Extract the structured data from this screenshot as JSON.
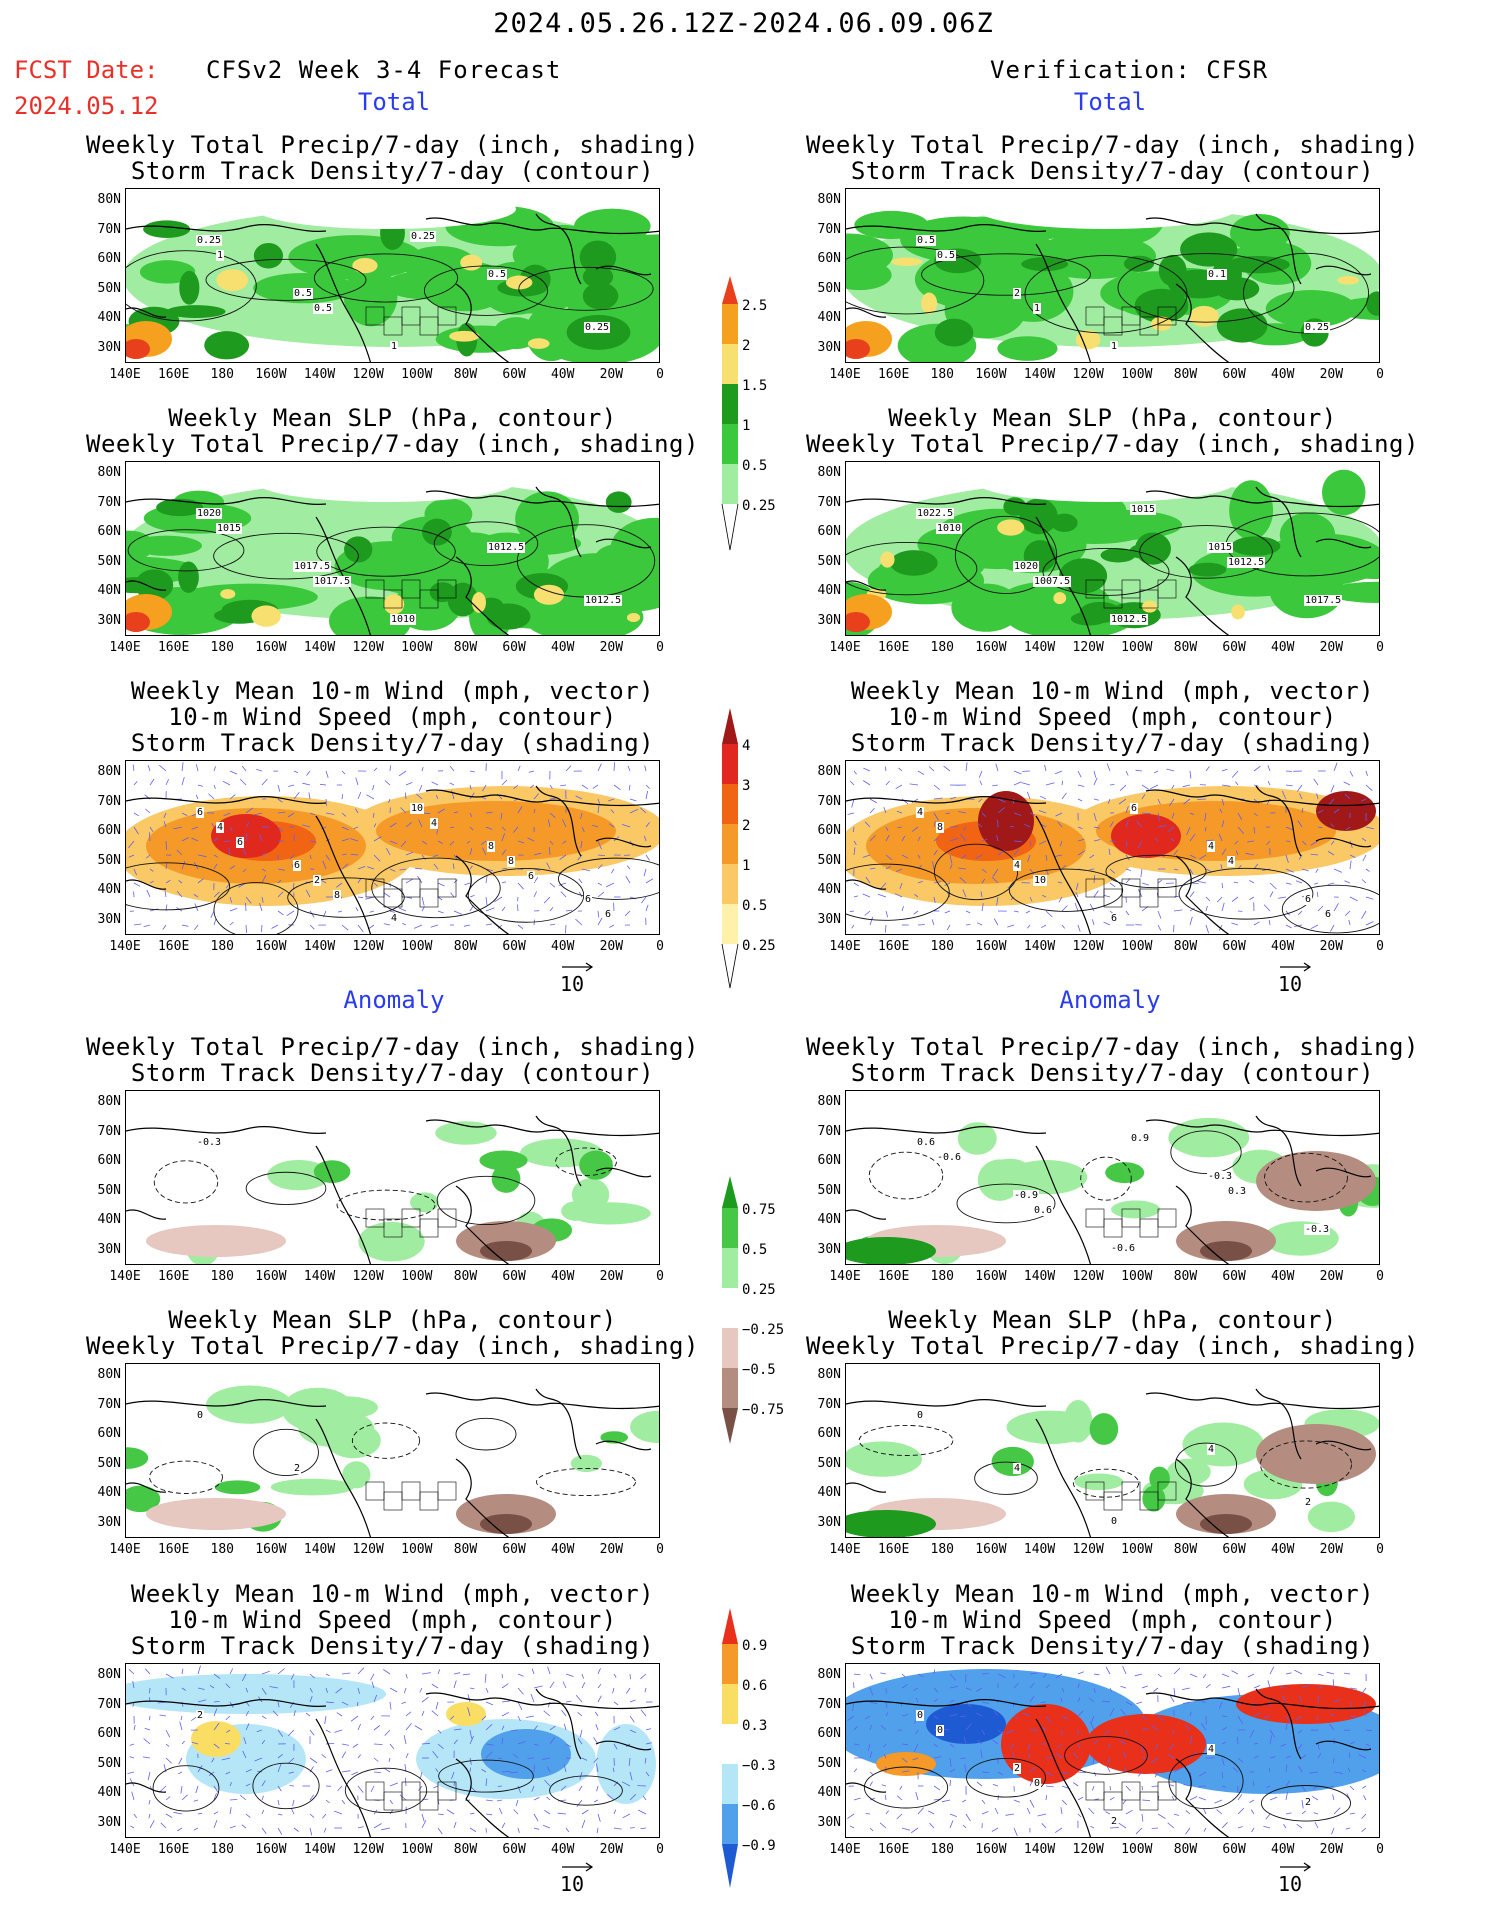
{
  "header": {
    "date_range": "2024.05.26.12Z-2024.06.09.06Z",
    "fcst_label": "FCST Date:",
    "fcst_date": "2024.05.12",
    "left_title": "CFSv2 Week 3-4 Forecast",
    "right_title": "Verification: CFSR"
  },
  "sections": {
    "total": "Total",
    "anomaly": "Anomaly"
  },
  "panel_titles": {
    "precip_storm": [
      "Weekly Total Precip/7-day (inch, shading)",
      "Storm Track Density/7-day (contour)"
    ],
    "slp_precip": [
      "Weekly Mean SLP (hPa, contour)",
      "Weekly Total Precip/7-day (inch, shading)"
    ],
    "wind_storm": [
      "Weekly Mean 10-m Wind (mph, vector)",
      "10-m Wind Speed (mph, contour)",
      "Storm Track Density/7-day (shading)"
    ]
  },
  "axes": {
    "lat_labels": [
      "80N",
      "70N",
      "60N",
      "50N",
      "40N",
      "30N"
    ],
    "lon_labels": [
      "140E",
      "160E",
      "180",
      "160W",
      "140W",
      "120W",
      "100W",
      "80W",
      "60W",
      "40W",
      "20W",
      "0"
    ]
  },
  "vector_reference": "10",
  "colorbars": {
    "precip_total": [
      "2.5",
      "2",
      "1.5",
      "1",
      "0.5",
      "0.25"
    ],
    "storm_total": [
      "4",
      "3",
      "2",
      "1",
      "0.5",
      "0.25"
    ],
    "precip_anom": [
      "0.75",
      "0.5",
      "0.25",
      "−0.25",
      "−0.5",
      "−0.75"
    ],
    "storm_anom": [
      "0.9",
      "0.6",
      "0.3",
      "−0.3",
      "−0.6",
      "−0.9"
    ]
  },
  "colors": {
    "precip_total": [
      "#e8401c",
      "#f5a01e",
      "#f8e070",
      "#1e9a1e",
      "#3cc83c",
      "#a0eca0"
    ],
    "storm_total": [
      "#a01818",
      "#e0281e",
      "#f06414",
      "#f59a28",
      "#fac864",
      "#fff0aa"
    ],
    "precip_anom_pos": [
      "#1e9a1e",
      "#46c846",
      "#a0eca0"
    ],
    "precip_anom_neg": [
      "#e6c8c0",
      "#b48c80",
      "#785046"
    ],
    "storm_anom_pos": [
      "#e8301a",
      "#f59a28",
      "#fade64"
    ],
    "storm_anom_neg": [
      "#b4e6f8",
      "#50a0ec",
      "#1e5ad2"
    ],
    "vectors": "#6060f0",
    "fcst_text": "#e8302a",
    "section_text": "#2a3cf0"
  },
  "panel_labels": {
    "fc_precip_storm": [
      "0.25",
      "0.5",
      "1",
      "0.5",
      "0.25",
      "1",
      "0.5",
      "0.25"
    ],
    "fc_slp": [
      "1020",
      "1017.5",
      "1010",
      "1012.5",
      "1012.5",
      "1015",
      "1017.5"
    ],
    "fc_wind": [
      "6",
      "6",
      "4",
      "8",
      "6",
      "4",
      "2",
      "10",
      "8",
      "6",
      "6",
      "8",
      "4",
      "6"
    ],
    "an_precip_storm": [
      "-0.3"
    ],
    "an_slp": [
      "0",
      "2"
    ],
    "an_wind": [
      "2"
    ],
    "vf_precip_storm": [
      "0.5",
      "2",
      "1",
      "0.1",
      "0.25",
      "0.5",
      "1"
    ],
    "vf_slp": [
      "1022.5",
      "1020",
      "1012.5",
      "1015",
      "1017.5",
      "1010",
      "1007.5",
      "1015",
      "1012.5"
    ],
    "vf_wind": [
      "4",
      "4",
      "6",
      "4",
      "6",
      "8",
      "10",
      "6",
      "4",
      "6"
    ],
    "va_precip_storm": [
      "0.6",
      "-0.9",
      "-0.6",
      "-0.3",
      "-0.3",
      "-0.6",
      "0.6",
      "0.9",
      "0.3"
    ],
    "va_slp": [
      "0",
      "4",
      "0",
      "4",
      "2"
    ],
    "va_wind": [
      "0",
      "2",
      "2",
      "4",
      "2",
      "0",
      "0"
    ]
  }
}
